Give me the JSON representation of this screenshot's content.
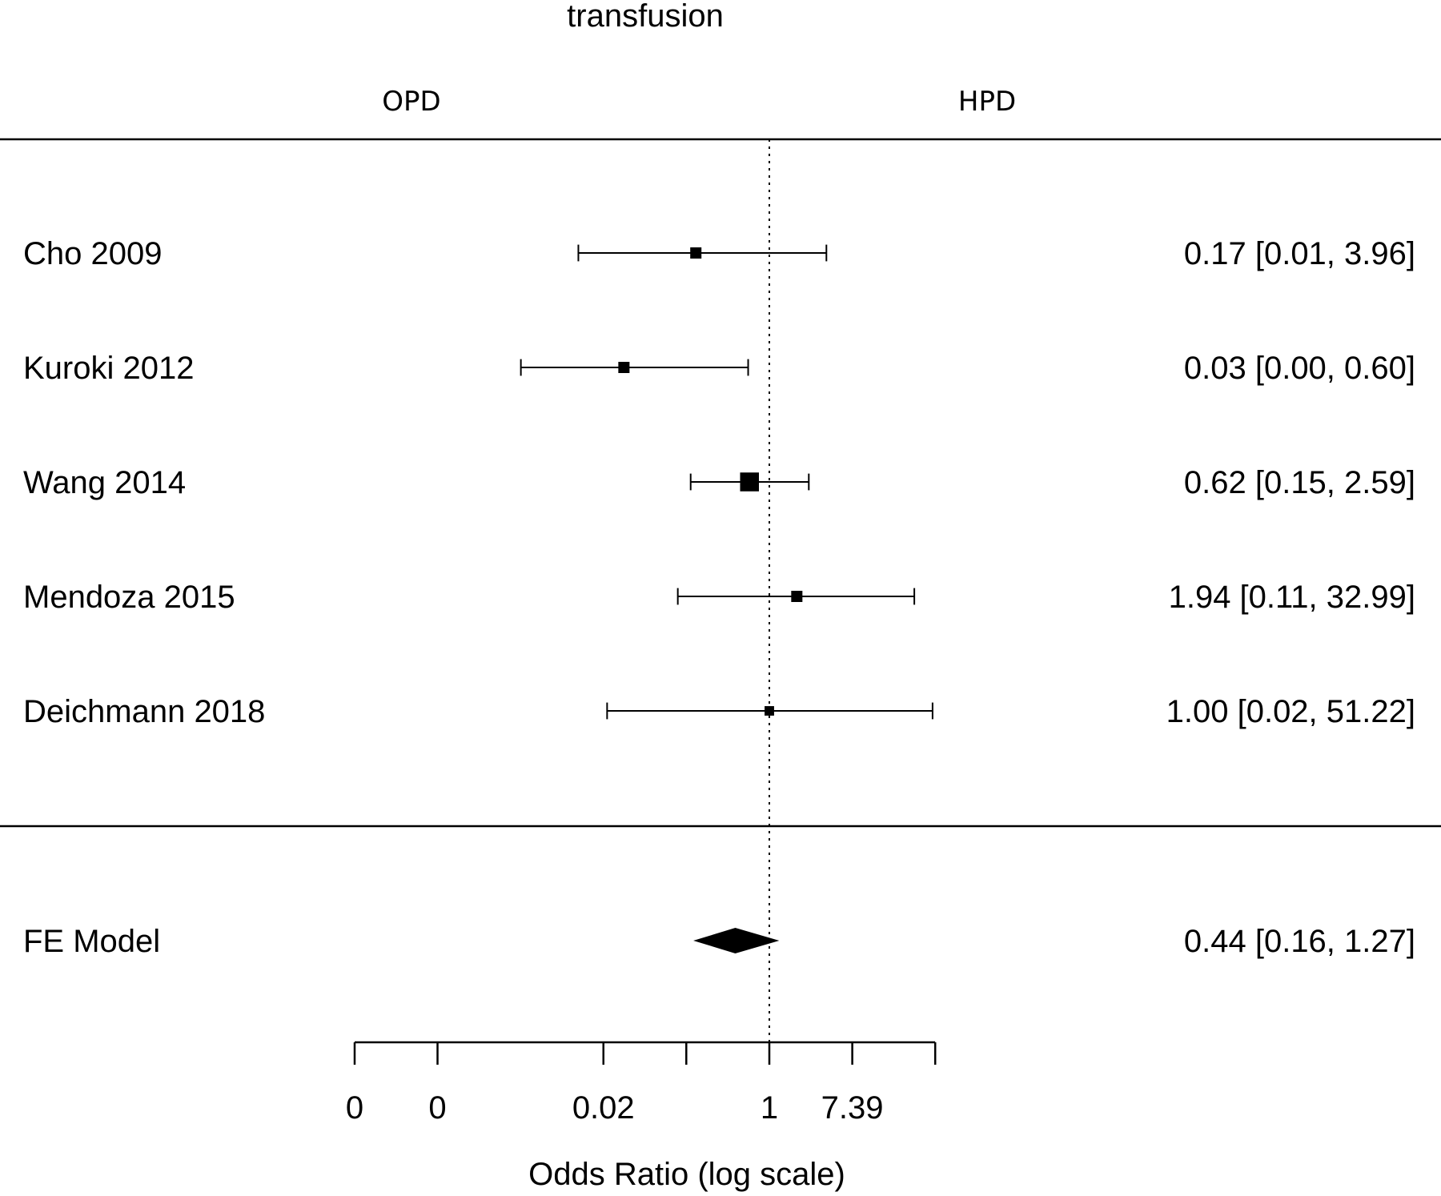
{
  "chart_data": {
    "type": "forest",
    "title": "transfusion",
    "left_header": "OPD",
    "right_header": "HPD",
    "xlabel": "Odds Ratio (log scale)",
    "x_scale": "log",
    "reference_line": 1,
    "x_ticks": [
      {
        "value": 4.54e-05,
        "label": "0"
      },
      {
        "value": 0.000335,
        "label": "0"
      },
      {
        "value": 0.0183,
        "label": "0.02"
      },
      {
        "value": 0.135,
        "label": ""
      },
      {
        "value": 1,
        "label": "1"
      },
      {
        "value": 7.39,
        "label": "7.39"
      },
      {
        "value": 54.6,
        "label": ""
      }
    ],
    "studies": [
      {
        "label": "Cho 2009",
        "estimate": 0.17,
        "ci_lower": 0.01,
        "ci_upper": 3.96,
        "text": "0.17 [0.01,  3.96]",
        "weight": 1
      },
      {
        "label": "Kuroki 2012",
        "estimate": 0.03,
        "ci_lower": 0.0,
        "ci_upper": 0.6,
        "text": "0.03 [0.00,  0.60]",
        "weight": 1
      },
      {
        "label": "Wang 2014",
        "estimate": 0.62,
        "ci_lower": 0.15,
        "ci_upper": 2.59,
        "text": "0.62 [0.15,  2.59]",
        "weight": 3
      },
      {
        "label": "Mendoza 2015",
        "estimate": 1.94,
        "ci_lower": 0.11,
        "ci_upper": 32.99,
        "text": "1.94 [0.11, 32.99]",
        "weight": 1
      },
      {
        "label": "Deichmann 2018",
        "estimate": 1.0,
        "ci_lower": 0.02,
        "ci_upper": 51.22,
        "text": "1.00 [0.02, 51.22]",
        "weight": 0.7
      }
    ],
    "summary": {
      "label": "FE Model",
      "estimate": 0.44,
      "ci_lower": 0.16,
      "ci_upper": 1.27,
      "text": "0.44 [0.16,  1.27]"
    }
  }
}
